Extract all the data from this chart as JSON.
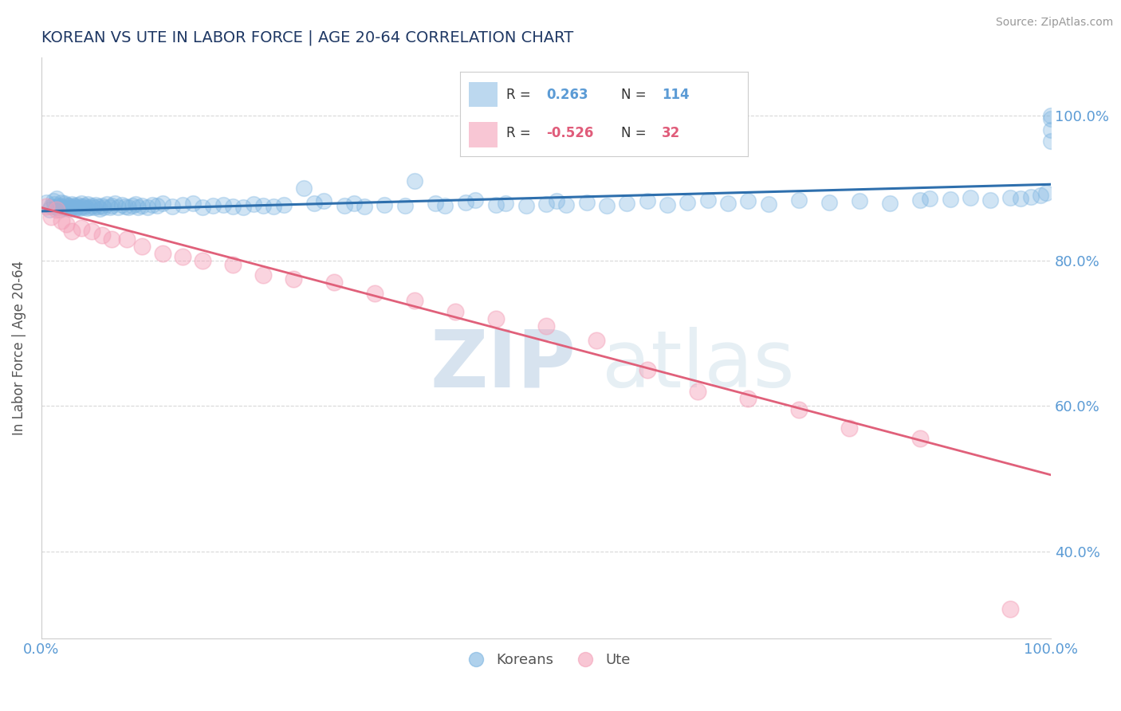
{
  "title": "KOREAN VS UTE IN LABOR FORCE | AGE 20-64 CORRELATION CHART",
  "source_text": "Source: ZipAtlas.com",
  "ylabel": "In Labor Force | Age 20-64",
  "watermark_zip": "ZIP",
  "watermark_atlas": "atlas",
  "blue_R": 0.263,
  "blue_N": 114,
  "pink_R": -0.526,
  "pink_N": 32,
  "xlim": [
    0.0,
    1.0
  ],
  "ylim": [
    0.28,
    1.08
  ],
  "yticks": [
    0.4,
    0.6,
    0.8,
    1.0
  ],
  "ytick_labels": [
    "40.0%",
    "60.0%",
    "80.0%",
    "100.0%"
  ],
  "xticks": [
    0.0,
    1.0
  ],
  "xtick_labels": [
    "0.0%",
    "100.0%"
  ],
  "grid_color": "#c8c8c8",
  "blue_color": "#7ab3e0",
  "pink_color": "#f4a0b8",
  "blue_line_color": "#2e6fad",
  "pink_line_color": "#e0607a",
  "title_color": "#1f3864",
  "axis_label_color": "#555555",
  "tick_color": "#5b9bd5",
  "legend_R_color": "#5b9bd5",
  "legend_R_neg_color": "#e05c7a",
  "background_color": "#ffffff",
  "blue_trend_y_start": 0.868,
  "blue_trend_y_end": 0.905,
  "pink_trend_y_start": 0.873,
  "pink_trend_y_end": 0.505,
  "blue_scatter_x": [
    0.005,
    0.008,
    0.01,
    0.012,
    0.013,
    0.015,
    0.015,
    0.017,
    0.018,
    0.02,
    0.02,
    0.022,
    0.023,
    0.025,
    0.025,
    0.027,
    0.028,
    0.03,
    0.03,
    0.032,
    0.033,
    0.034,
    0.035,
    0.036,
    0.038,
    0.04,
    0.04,
    0.042,
    0.043,
    0.045,
    0.046,
    0.048,
    0.05,
    0.052,
    0.054,
    0.056,
    0.058,
    0.06,
    0.062,
    0.065,
    0.068,
    0.07,
    0.073,
    0.076,
    0.08,
    0.083,
    0.086,
    0.09,
    0.093,
    0.096,
    0.1,
    0.105,
    0.11,
    0.115,
    0.12,
    0.13,
    0.14,
    0.15,
    0.16,
    0.17,
    0.18,
    0.19,
    0.2,
    0.21,
    0.22,
    0.23,
    0.24,
    0.26,
    0.27,
    0.28,
    0.3,
    0.31,
    0.32,
    0.34,
    0.36,
    0.37,
    0.39,
    0.4,
    0.42,
    0.43,
    0.45,
    0.46,
    0.48,
    0.5,
    0.51,
    0.52,
    0.54,
    0.56,
    0.58,
    0.6,
    0.62,
    0.64,
    0.66,
    0.68,
    0.7,
    0.72,
    0.75,
    0.78,
    0.81,
    0.84,
    0.87,
    0.88,
    0.9,
    0.92,
    0.94,
    0.96,
    0.97,
    0.98,
    0.99,
    0.995,
    1.0,
    1.0,
    1.0,
    1.0
  ],
  "blue_scatter_y": [
    0.88,
    0.87,
    0.875,
    0.882,
    0.878,
    0.885,
    0.873,
    0.876,
    0.87,
    0.88,
    0.875,
    0.872,
    0.879,
    0.877,
    0.873,
    0.876,
    0.871,
    0.878,
    0.874,
    0.876,
    0.871,
    0.875,
    0.873,
    0.877,
    0.872,
    0.875,
    0.879,
    0.873,
    0.876,
    0.872,
    0.878,
    0.874,
    0.876,
    0.873,
    0.877,
    0.875,
    0.871,
    0.876,
    0.874,
    0.878,
    0.873,
    0.876,
    0.879,
    0.874,
    0.877,
    0.875,
    0.873,
    0.876,
    0.878,
    0.874,
    0.876,
    0.873,
    0.877,
    0.876,
    0.879,
    0.875,
    0.877,
    0.879,
    0.874,
    0.876,
    0.877,
    0.875,
    0.874,
    0.878,
    0.876,
    0.875,
    0.877,
    0.9,
    0.879,
    0.882,
    0.876,
    0.879,
    0.875,
    0.877,
    0.876,
    0.91,
    0.879,
    0.876,
    0.88,
    0.883,
    0.877,
    0.879,
    0.876,
    0.878,
    0.882,
    0.877,
    0.88,
    0.876,
    0.879,
    0.882,
    0.877,
    0.88,
    0.883,
    0.879,
    0.882,
    0.878,
    0.883,
    0.88,
    0.882,
    0.879,
    0.883,
    0.886,
    0.884,
    0.887,
    0.883,
    0.887,
    0.885,
    0.888,
    0.89,
    0.893,
    0.995,
    0.98,
    0.965,
    1.0
  ],
  "pink_scatter_x": [
    0.005,
    0.01,
    0.015,
    0.02,
    0.025,
    0.03,
    0.04,
    0.05,
    0.06,
    0.07,
    0.085,
    0.1,
    0.12,
    0.14,
    0.16,
    0.19,
    0.22,
    0.25,
    0.29,
    0.33,
    0.37,
    0.41,
    0.45,
    0.5,
    0.55,
    0.6,
    0.65,
    0.7,
    0.75,
    0.8,
    0.87,
    0.96
  ],
  "pink_scatter_y": [
    0.875,
    0.86,
    0.87,
    0.855,
    0.85,
    0.84,
    0.845,
    0.84,
    0.835,
    0.83,
    0.83,
    0.82,
    0.81,
    0.805,
    0.8,
    0.795,
    0.78,
    0.775,
    0.77,
    0.755,
    0.745,
    0.73,
    0.72,
    0.71,
    0.69,
    0.65,
    0.62,
    0.61,
    0.595,
    0.57,
    0.555,
    0.32
  ]
}
